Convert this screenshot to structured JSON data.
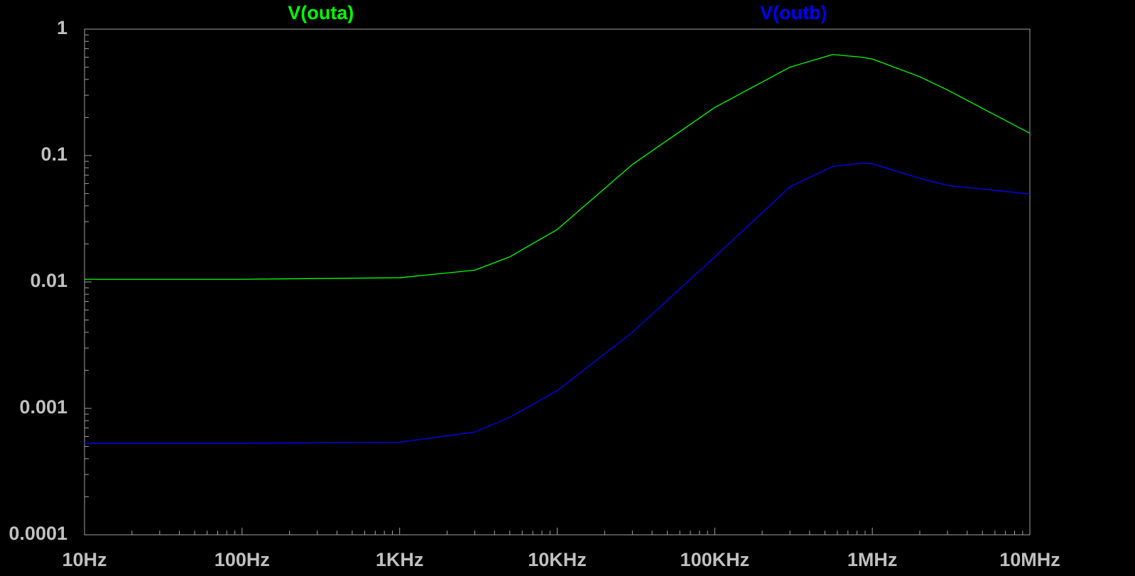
{
  "chart_data": {
    "type": "line",
    "xscale": "log",
    "yscale": "log",
    "x": [
      10,
      100,
      1000,
      3000,
      5000,
      10000,
      30000,
      100000,
      300000,
      560000,
      850000,
      1000000,
      2000000,
      3000000,
      10000000
    ],
    "series": [
      {
        "name": "V(outa)",
        "color": "#00ff00",
        "values": [
          0.0105,
          0.0105,
          0.0108,
          0.0124,
          0.0158,
          0.026,
          0.085,
          0.24,
          0.5,
          0.63,
          0.6,
          0.58,
          0.42,
          0.33,
          0.15
        ]
      },
      {
        "name": "V(outb)",
        "color": "#0000ff",
        "values": [
          0.00053,
          0.00053,
          0.00054,
          0.00065,
          0.00085,
          0.00138,
          0.004,
          0.0158,
          0.0566,
          0.082,
          0.087,
          0.086,
          0.066,
          0.058,
          0.0496
        ]
      }
    ],
    "xlim": [
      10,
      10000000
    ],
    "ylim": [
      0.0001,
      1
    ],
    "xticks": [
      {
        "value": 10,
        "label": "10Hz"
      },
      {
        "value": 100,
        "label": "100Hz"
      },
      {
        "value": 1000,
        "label": "1KHz"
      },
      {
        "value": 10000,
        "label": "10KHz"
      },
      {
        "value": 100000,
        "label": "100KHz"
      },
      {
        "value": 1000000,
        "label": "1MHz"
      },
      {
        "value": 10000000,
        "label": "10MHz"
      }
    ],
    "yticks": [
      0.0001,
      0.001,
      0.01,
      0.1,
      1
    ],
    "grid": false
  }
}
